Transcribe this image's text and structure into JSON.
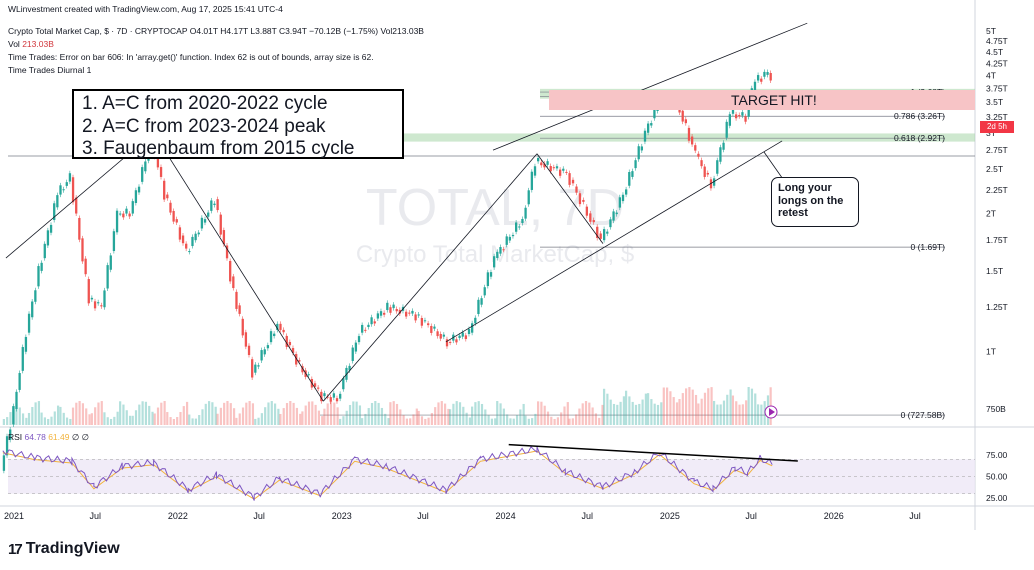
{
  "header": {
    "credit": "WLinvestment created with TradingView.com, Aug 17, 2025 15:41 UTC-4",
    "symbol": "Crypto Total Market Cap, $ · 7D · CRYPTOCAP",
    "ohlc": "O4.01T H4.17T L3.88T C3.94T −70.12B (−1.75%) Vol213.03B",
    "vol_label": "Vol",
    "vol_value": "213.03B",
    "indicator_error": "Time Trades: Error on bar 606: In 'array.get()' function. Index 62 is out of bounds, array size is 62.",
    "indicator_name": "Time Trades Diurnal 1"
  },
  "watermark": {
    "ticker": "TOTAL, 7D",
    "name": "Crypto Total MarketCap, $"
  },
  "notes": {
    "line1": "1. A=C from 2020-2022 cycle",
    "line2": "2. A=C from 2023-2024 peak",
    "line3": "3. Faugenbaum from 2015 cycle"
  },
  "target": {
    "label": "TARGET HIT!"
  },
  "callout": {
    "text": "Long your longs on the retest"
  },
  "countdown": "2d 5h",
  "rsi": {
    "label": "RSI",
    "value": "64.78",
    "signal": "61.49",
    "extra1": "∅",
    "extra2": "∅"
  },
  "brand": {
    "name": "TradingView"
  },
  "colors": {
    "up": "#26a69a",
    "down": "#ef5350",
    "rsi_line": "#7e57c2",
    "rsi_ma": "#f2b33d",
    "fib_zone": "#a5d6a7",
    "target_zone": "#f7c4c6",
    "accent": "#2962ff"
  },
  "chart_data": {
    "type": "candlestick",
    "title": "Crypto Total Market Cap, $ · 7D · CRYPTOCAP",
    "y_scale": "log",
    "y_ticks": [
      "5T",
      "4.75T",
      "4.5T",
      "4.25T",
      "4T",
      "3.75T",
      "3.5T",
      "3.25T",
      "3T",
      "2.75T",
      "2.5T",
      "2.25T",
      "2T",
      "1.75T",
      "1.5T",
      "1.25T",
      "1T",
      "750B"
    ],
    "y_tick_values": [
      5,
      4.75,
      4.5,
      4.25,
      4,
      3.75,
      3.5,
      3.25,
      3,
      2.75,
      2.5,
      2.25,
      2,
      1.75,
      1.5,
      1.25,
      1,
      0.75
    ],
    "x_ticks": [
      "2021",
      "Jul",
      "2022",
      "Jul",
      "2023",
      "Jul",
      "2024",
      "Jul",
      "2025",
      "Jul",
      "2026",
      "Jul"
    ],
    "x_tick_dates": [
      "2021-01-01",
      "2021-07-01",
      "2022-01-01",
      "2022-07-01",
      "2023-01-01",
      "2023-07-01",
      "2024-01-01",
      "2024-07-01",
      "2025-01-01",
      "2025-07-01",
      "2026-01-01",
      "2026-07-01"
    ],
    "fib_levels": [
      {
        "label": "1 (3.68T)",
        "value": 3.68
      },
      {
        "label": "4.669 (3.6T)",
        "value": 3.6
      },
      {
        "label": "0.786 (3.26T)",
        "value": 3.26
      },
      {
        "label": "0.618 (2.92T)",
        "value": 2.92
      },
      {
        "label": "0 (1.69T)",
        "value": 1.69
      },
      {
        "label": "0 (727.58B)",
        "value": 0.72758
      }
    ],
    "price_path": [
      {
        "date": "2020-12-07",
        "value": 0.55
      },
      {
        "date": "2021-01-04",
        "value": 0.75
      },
      {
        "date": "2021-02-01",
        "value": 1.1
      },
      {
        "date": "2021-03-01",
        "value": 1.5
      },
      {
        "date": "2021-04-12",
        "value": 2.2
      },
      {
        "date": "2021-05-10",
        "value": 2.4
      },
      {
        "date": "2021-06-21",
        "value": 1.3
      },
      {
        "date": "2021-07-19",
        "value": 1.25
      },
      {
        "date": "2021-08-23",
        "value": 2.0
      },
      {
        "date": "2021-09-20",
        "value": 2.0
      },
      {
        "date": "2021-11-08",
        "value": 2.9
      },
      {
        "date": "2021-12-06",
        "value": 2.2
      },
      {
        "date": "2022-01-24",
        "value": 1.65
      },
      {
        "date": "2022-03-28",
        "value": 2.15
      },
      {
        "date": "2022-05-09",
        "value": 1.35
      },
      {
        "date": "2022-06-20",
        "value": 0.9
      },
      {
        "date": "2022-08-15",
        "value": 1.15
      },
      {
        "date": "2022-10-03",
        "value": 0.93
      },
      {
        "date": "2022-11-21",
        "value": 0.8
      },
      {
        "date": "2022-12-26",
        "value": 0.79
      },
      {
        "date": "2023-02-13",
        "value": 1.1
      },
      {
        "date": "2023-04-17",
        "value": 1.25
      },
      {
        "date": "2023-06-19",
        "value": 1.2
      },
      {
        "date": "2023-08-28",
        "value": 1.05
      },
      {
        "date": "2023-10-16",
        "value": 1.1
      },
      {
        "date": "2023-12-11",
        "value": 1.6
      },
      {
        "date": "2024-02-12",
        "value": 1.95
      },
      {
        "date": "2024-03-11",
        "value": 2.6
      },
      {
        "date": "2024-05-20",
        "value": 2.45
      },
      {
        "date": "2024-08-05",
        "value": 1.75
      },
      {
        "date": "2024-09-23",
        "value": 2.2
      },
      {
        "date": "2024-11-11",
        "value": 3.0
      },
      {
        "date": "2024-12-16",
        "value": 3.6
      },
      {
        "date": "2025-01-20",
        "value": 3.5
      },
      {
        "date": "2025-03-03",
        "value": 2.7
      },
      {
        "date": "2025-04-07",
        "value": 2.3
      },
      {
        "date": "2025-05-19",
        "value": 3.3
      },
      {
        "date": "2025-06-23",
        "value": 3.25
      },
      {
        "date": "2025-07-14",
        "value": 3.9
      },
      {
        "date": "2025-08-11",
        "value": 4.05
      },
      {
        "date": "2025-08-17",
        "value": 3.94
      }
    ],
    "rsi_ticks": [
      "75.00",
      "50.00",
      "25.00"
    ],
    "rsi_tick_values": [
      75,
      50,
      25
    ],
    "rsi_path": [
      {
        "date": "2020-12-07",
        "value": 80
      },
      {
        "date": "2021-02-15",
        "value": 72
      },
      {
        "date": "2021-05-10",
        "value": 68
      },
      {
        "date": "2021-06-28",
        "value": 38
      },
      {
        "date": "2021-08-30",
        "value": 62
      },
      {
        "date": "2021-11-08",
        "value": 66
      },
      {
        "date": "2022-01-24",
        "value": 35
      },
      {
        "date": "2022-03-28",
        "value": 52
      },
      {
        "date": "2022-06-20",
        "value": 26
      },
      {
        "date": "2022-08-15",
        "value": 48
      },
      {
        "date": "2022-11-14",
        "value": 30
      },
      {
        "date": "2023-01-30",
        "value": 70
      },
      {
        "date": "2023-04-10",
        "value": 62
      },
      {
        "date": "2023-08-21",
        "value": 34
      },
      {
        "date": "2023-11-06",
        "value": 70
      },
      {
        "date": "2024-03-11",
        "value": 82
      },
      {
        "date": "2024-05-13",
        "value": 56
      },
      {
        "date": "2024-08-05",
        "value": 38
      },
      {
        "date": "2024-10-14",
        "value": 55
      },
      {
        "date": "2024-12-09",
        "value": 78
      },
      {
        "date": "2025-02-24",
        "value": 44
      },
      {
        "date": "2025-04-07",
        "value": 36
      },
      {
        "date": "2025-05-26",
        "value": 60
      },
      {
        "date": "2025-06-23",
        "value": 54
      },
      {
        "date": "2025-07-21",
        "value": 71
      },
      {
        "date": "2025-08-17",
        "value": 64.78
      }
    ]
  }
}
